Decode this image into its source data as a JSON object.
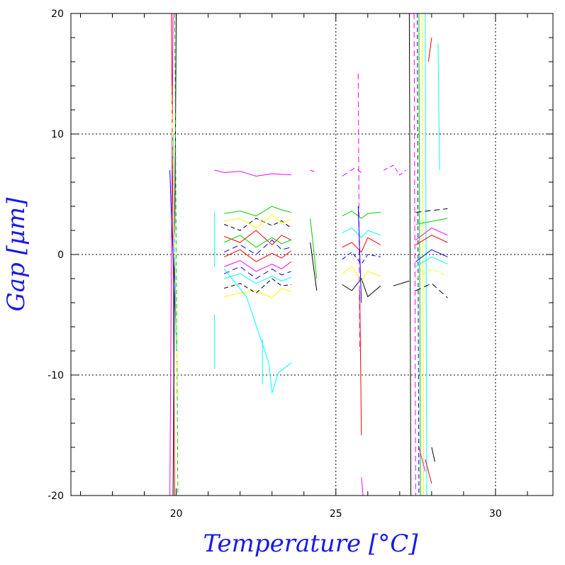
{
  "chart_data": {
    "type": "line",
    "title": "",
    "xlabel": "Temperature [°C]",
    "ylabel": "Gap [μm]",
    "xlim": [
      16.7,
      31.8
    ],
    "ylim": [
      -20,
      20
    ],
    "x_ticks": [
      20,
      25,
      30
    ],
    "y_ticks": [
      -20,
      -10,
      0,
      10,
      20
    ],
    "x_grid": [
      25,
      30
    ],
    "y_grid": [
      -10,
      0,
      10
    ],
    "grid": true,
    "legend": "none",
    "colors": {
      "label": "#1a1ae6",
      "palette": [
        "#000000",
        "#ff0000",
        "#00cc00",
        "#0000ff",
        "#ffff00",
        "#ff00ff",
        "#00ffff"
      ]
    },
    "series": [
      {
        "color": "#ff00ff",
        "x": [
          19.8,
          19.9
        ],
        "y": [
          -20,
          20
        ]
      },
      {
        "color": "#ff0000",
        "x": [
          19.85,
          19.95
        ],
        "y": [
          20,
          -20
        ]
      },
      {
        "color": "#000000",
        "x": [
          19.9,
          20.0
        ],
        "y": [
          -20,
          20
        ]
      },
      {
        "color": "#00cc00",
        "x": [
          19.95,
          20.05
        ],
        "y": [
          20,
          -20
        ]
      },
      {
        "color": "#0000ff",
        "x": [
          19.8,
          19.85,
          19.9,
          19.95,
          20.0
        ],
        "y": [
          7,
          3,
          0,
          -3,
          -7
        ]
      },
      {
        "color": "#00ffff",
        "x": [
          19.9,
          20.0
        ],
        "y": [
          10,
          -8
        ]
      },
      {
        "color": "#ffff00",
        "x": [
          19.85,
          20.05
        ],
        "y": [
          14,
          -12
        ]
      },
      {
        "color": "#00ffff",
        "x": [
          21.2,
          21.2
        ],
        "y": [
          -5,
          -9.5
        ]
      },
      {
        "color": "#00ffff",
        "x": [
          21.2,
          21.2
        ],
        "y": [
          3.5,
          -1.0
        ]
      },
      {
        "color": "#ff00ff",
        "x": [
          21.2,
          21.5,
          22.0,
          22.5,
          23.0,
          23.6
        ],
        "y": [
          7.0,
          6.8,
          6.9,
          6.5,
          6.7,
          6.6
        ]
      },
      {
        "color": "#000000",
        "x": [
          21.5,
          22.0,
          22.5,
          23.0,
          23.3,
          23.6
        ],
        "y": [
          2.5,
          2.0,
          3.0,
          2.4,
          2.8,
          2.2
        ]
      },
      {
        "color": "#ff0000",
        "x": [
          21.5,
          22.0,
          22.5,
          23.0,
          23.3,
          23.6
        ],
        "y": [
          1.5,
          1.0,
          2.0,
          0.8,
          1.6,
          1.2
        ]
      },
      {
        "color": "#00cc00",
        "x": [
          21.5,
          22.0,
          22.5,
          23.0,
          23.3,
          23.6
        ],
        "y": [
          3.4,
          3.6,
          3.2,
          4.0,
          3.7,
          3.5
        ]
      },
      {
        "color": "#0000ff",
        "x": [
          21.5,
          22.0,
          22.5,
          23.0,
          23.3,
          23.6
        ],
        "y": [
          0.2,
          0.8,
          0.0,
          1.2,
          0.4,
          0.6
        ]
      },
      {
        "color": "#ffff00",
        "x": [
          21.5,
          22.0,
          22.5,
          23.0,
          23.3,
          23.6
        ],
        "y": [
          -3.5,
          -3.2,
          -3.0,
          -3.6,
          -2.8,
          -3.1
        ]
      },
      {
        "color": "#ff00ff",
        "x": [
          21.5,
          22.0,
          22.5,
          23.0,
          23.3,
          23.6
        ],
        "y": [
          -1.0,
          -0.5,
          -1.4,
          -0.8,
          -1.2,
          -0.6
        ]
      },
      {
        "color": "#00ffff",
        "x": [
          21.5,
          22.0,
          22.5,
          23.0,
          23.3,
          23.6
        ],
        "y": [
          -2.0,
          -1.6,
          -2.4,
          -1.8,
          -2.2,
          -1.9
        ]
      },
      {
        "color": "#000000",
        "x": [
          21.5,
          22.0,
          22.5,
          23.0,
          23.3,
          23.6
        ],
        "y": [
          -2.8,
          -2.4,
          -3.2,
          -2.0,
          -2.6,
          -2.5
        ]
      },
      {
        "color": "#ff0000",
        "x": [
          21.5,
          22.0,
          22.5,
          23.0,
          23.3,
          23.6
        ],
        "y": [
          -0.2,
          0.4,
          -0.6,
          0.1,
          -0.3,
          0.3
        ]
      },
      {
        "color": "#00cc00",
        "x": [
          21.5,
          22.0,
          22.5,
          23.0,
          23.3,
          23.6
        ],
        "y": [
          1.0,
          1.6,
          0.6,
          1.4,
          0.9,
          1.2
        ]
      },
      {
        "color": "#0000ff",
        "x": [
          21.5,
          22.0,
          22.5,
          23.0,
          23.3,
          23.6
        ],
        "y": [
          -1.6,
          -1.0,
          -2.0,
          -1.2,
          -1.7,
          -1.4
        ]
      },
      {
        "color": "#ffff00",
        "x": [
          21.5,
          22.0,
          22.5,
          23.0,
          23.3,
          23.6
        ],
        "y": [
          2.8,
          3.0,
          2.2,
          3.3,
          2.6,
          2.9
        ]
      },
      {
        "color": "#00ffff",
        "x": [
          21.5,
          22.2,
          22.9,
          23.0,
          23.2,
          23.6
        ],
        "y": [
          -1.2,
          -3.5,
          -9.0,
          -11.5,
          -9.8,
          -9.0
        ]
      },
      {
        "color": "#00ffff",
        "x": [
          22.7,
          22.7
        ],
        "y": [
          -7.0,
          -10.8
        ]
      },
      {
        "color": "#ff00ff",
        "x": [
          24.2,
          24.4
        ],
        "y": [
          7.0,
          6.8
        ]
      },
      {
        "color": "#00cc00",
        "x": [
          24.2,
          24.4
        ],
        "y": [
          3.0,
          -2.0
        ]
      },
      {
        "color": "#000000",
        "x": [
          24.2,
          24.4
        ],
        "y": [
          1.0,
          -3.0
        ]
      },
      {
        "color": "#ff00ff",
        "x": [
          25.2,
          25.6,
          25.8
        ],
        "y": [
          6.5,
          7.2,
          6.8
        ]
      },
      {
        "color": "#000000",
        "x": [
          25.2,
          25.5,
          25.8,
          26.0,
          26.4
        ],
        "y": [
          -2.5,
          -3.0,
          -2.0,
          -3.5,
          -2.6
        ]
      },
      {
        "color": "#00cc00",
        "x": [
          25.2,
          25.5,
          25.8,
          26.0,
          26.4
        ],
        "y": [
          3.2,
          3.6,
          3.0,
          3.4,
          3.5
        ]
      },
      {
        "color": "#ff0000",
        "x": [
          25.2,
          25.5,
          25.8,
          26.0,
          26.4
        ],
        "y": [
          0.6,
          1.0,
          0.2,
          1.4,
          0.8
        ]
      },
      {
        "color": "#0000ff",
        "x": [
          25.2,
          25.5,
          25.8,
          26.0,
          26.4
        ],
        "y": [
          -0.4,
          0.2,
          -0.8,
          0.0,
          -0.2
        ]
      },
      {
        "color": "#ffff00",
        "x": [
          25.2,
          25.5,
          25.8,
          26.0,
          26.4
        ],
        "y": [
          -1.6,
          -1.0,
          -2.2,
          -1.4,
          -1.8
        ]
      },
      {
        "color": "#00ffff",
        "x": [
          25.2,
          25.5,
          25.8,
          26.0,
          26.4
        ],
        "y": [
          1.8,
          2.2,
          1.4,
          2.0,
          1.6
        ]
      },
      {
        "color": "#ff00ff",
        "x": [
          25.7,
          25.75
        ],
        "y": [
          15.0,
          -8.0
        ]
      },
      {
        "color": "#ff0000",
        "x": [
          25.75,
          25.8
        ],
        "y": [
          -3.0,
          -15.0
        ]
      },
      {
        "color": "#0000ff",
        "x": [
          25.7,
          25.8
        ],
        "y": [
          4.0,
          -4.0
        ]
      },
      {
        "color": "#ff00ff",
        "x": [
          25.8,
          25.85
        ],
        "y": [
          -18.5,
          -20.0
        ]
      },
      {
        "color": "#ff00ff",
        "x": [
          26.5,
          26.8,
          27.0,
          27.2
        ],
        "y": [
          7.0,
          7.4,
          6.6,
          7.0
        ]
      },
      {
        "color": "#000000",
        "x": [
          26.8,
          27.3
        ],
        "y": [
          -2.6,
          -2.2
        ]
      },
      {
        "color": "#000000",
        "x": [
          27.3,
          27.35
        ],
        "y": [
          20.0,
          -20.0
        ]
      },
      {
        "color": "#ff00ff",
        "x": [
          27.45,
          27.5
        ],
        "y": [
          20.0,
          -20.0
        ]
      },
      {
        "color": "#00cc00",
        "x": [
          27.6,
          27.65
        ],
        "y": [
          20.0,
          -20.0
        ]
      },
      {
        "color": "#ffff00",
        "x": [
          27.7,
          27.75
        ],
        "y": [
          20.0,
          -20.0
        ]
      },
      {
        "color": "#00ffff",
        "x": [
          27.8,
          27.85
        ],
        "y": [
          20.0,
          -20.0
        ]
      },
      {
        "color": "#0000ff",
        "x": [
          27.55,
          27.6
        ],
        "y": [
          20.0,
          -20.0
        ]
      },
      {
        "color": "#ff0000",
        "x": [
          27.9,
          28.0
        ],
        "y": [
          16.0,
          18.0
        ]
      },
      {
        "color": "#00ffff",
        "x": [
          28.2,
          28.25
        ],
        "y": [
          17.5,
          7.0
        ]
      },
      {
        "color": "#000000",
        "x": [
          27.5,
          28.5
        ],
        "y": [
          3.5,
          3.8
        ]
      },
      {
        "color": "#00cc00",
        "x": [
          27.5,
          28.5
        ],
        "y": [
          2.5,
          3.0
        ]
      },
      {
        "color": "#ff0000",
        "x": [
          27.5,
          28.0,
          28.5
        ],
        "y": [
          0.8,
          1.6,
          1.0
        ]
      },
      {
        "color": "#0000ff",
        "x": [
          27.5,
          28.0,
          28.5
        ],
        "y": [
          -0.6,
          0.4,
          -0.2
        ]
      },
      {
        "color": "#ffff00",
        "x": [
          27.5,
          28.0,
          28.5
        ],
        "y": [
          -2.0,
          -1.2,
          -1.8
        ]
      },
      {
        "color": "#ff00ff",
        "x": [
          27.5,
          28.0,
          28.5
        ],
        "y": [
          1.2,
          2.2,
          1.6
        ]
      },
      {
        "color": "#00ffff",
        "x": [
          27.5,
          28.0,
          28.5
        ],
        "y": [
          -1.0,
          -0.2,
          -0.8
        ]
      },
      {
        "color": "#000000",
        "x": [
          27.5,
          28.0,
          28.5
        ],
        "y": [
          -3.0,
          -2.4,
          -3.6
        ]
      },
      {
        "color": "#ff0000",
        "x": [
          27.8,
          28.0
        ],
        "y": [
          -17.0,
          -19.0
        ]
      },
      {
        "color": "#000000",
        "x": [
          28.0,
          28.1
        ],
        "y": [
          -16.0,
          -17.2
        ]
      },
      {
        "color": "#ff00ff",
        "x": [
          27.6,
          27.8
        ],
        "y": [
          -16.0,
          -18.0
        ]
      }
    ]
  }
}
